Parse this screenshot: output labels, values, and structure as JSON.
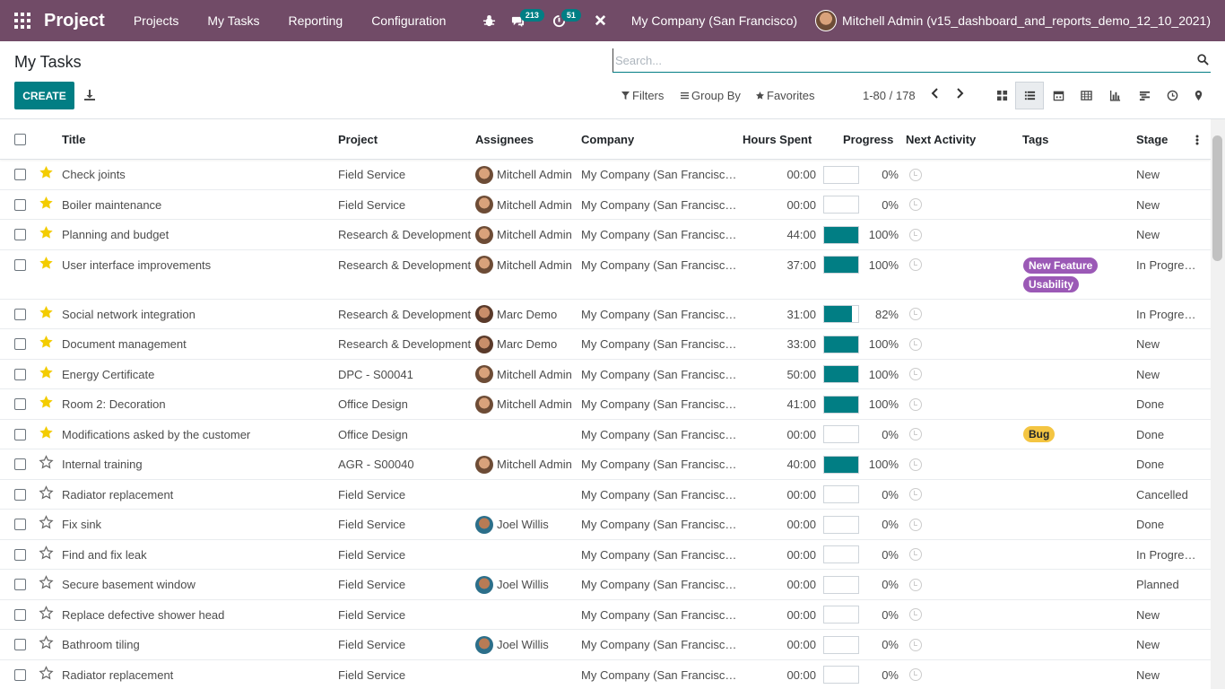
{
  "navbar": {
    "brand": "Project",
    "menus": [
      "Projects",
      "My Tasks",
      "Reporting",
      "Configuration"
    ],
    "messages_count": "213",
    "activities_count": "51",
    "company": "My Company (San Francisco)",
    "user": "Mitchell Admin (v15_dashboard_and_reports_demo_12_10_2021)"
  },
  "control_panel": {
    "title": "My Tasks",
    "create_label": "CREATE",
    "search_placeholder": "Search...",
    "filters_label": "Filters",
    "groupby_label": "Group By",
    "favorites_label": "Favorites",
    "pager": "1-80 / 178",
    "active_view": "list"
  },
  "table": {
    "headers": {
      "title": "Title",
      "project": "Project",
      "assignees": "Assignees",
      "company": "Company",
      "hours": "Hours Spent",
      "progress": "Progress",
      "activity": "Next Activity",
      "tags": "Tags",
      "stage": "Stage"
    },
    "tag_colors": {
      "New Feature": "#9b59b6",
      "Usability": "#9b59b6",
      "Bug": "#f4c542"
    },
    "rows": [
      {
        "starred": true,
        "title": "Check joints",
        "project": "Field Service",
        "assignee": "Mitchell Admin",
        "avatar": "mitchell",
        "company": "My Company (San Francisc…",
        "hours": "00:00",
        "progress": 0,
        "progress_label": "0%",
        "tags": [],
        "stage": "New"
      },
      {
        "starred": true,
        "title": "Boiler maintenance",
        "project": "Field Service",
        "assignee": "Mitchell Admin",
        "avatar": "mitchell",
        "company": "My Company (San Francisc…",
        "hours": "00:00",
        "progress": 0,
        "progress_label": "0%",
        "tags": [],
        "stage": "New"
      },
      {
        "starred": true,
        "title": "Planning and budget",
        "project": "Research & Development",
        "assignee": "Mitchell Admin",
        "avatar": "mitchell",
        "company": "My Company (San Francisc…",
        "hours": "44:00",
        "progress": 100,
        "progress_label": "100%",
        "tags": [],
        "stage": "New"
      },
      {
        "starred": true,
        "title": "User interface improvements",
        "project": "Research & Development",
        "assignee": "Mitchell Admin",
        "avatar": "mitchell",
        "company": "My Company (San Francisc…",
        "hours": "37:00",
        "progress": 100,
        "progress_label": "100%",
        "tags": [
          "New Feature",
          "Usability"
        ],
        "stage": "In Progre…"
      },
      {
        "starred": true,
        "title": "Social network integration",
        "project": "Research & Development",
        "assignee": "Marc Demo",
        "avatar": "marc",
        "company": "My Company (San Francisc…",
        "hours": "31:00",
        "progress": 82,
        "progress_label": "82%",
        "tags": [],
        "stage": "In Progre…"
      },
      {
        "starred": true,
        "title": "Document management",
        "project": "Research & Development",
        "assignee": "Marc Demo",
        "avatar": "marc",
        "company": "My Company (San Francisc…",
        "hours": "33:00",
        "progress": 100,
        "progress_label": "100%",
        "tags": [],
        "stage": "New"
      },
      {
        "starred": true,
        "title": "Energy Certificate",
        "project": "DPC - S00041",
        "assignee": "Mitchell Admin",
        "avatar": "mitchell",
        "company": "My Company (San Francisc…",
        "hours": "50:00",
        "progress": 100,
        "progress_label": "100%",
        "tags": [],
        "stage": "New"
      },
      {
        "starred": true,
        "title": "Room 2: Decoration",
        "project": "Office Design",
        "assignee": "Mitchell Admin",
        "avatar": "mitchell",
        "company": "My Company (San Francisc…",
        "hours": "41:00",
        "progress": 100,
        "progress_label": "100%",
        "tags": [],
        "stage": "Done"
      },
      {
        "starred": true,
        "title": "Modifications asked by the customer",
        "project": "Office Design",
        "assignee": "",
        "avatar": "",
        "company": "My Company (San Francisc…",
        "hours": "00:00",
        "progress": 0,
        "progress_label": "0%",
        "tags": [
          "Bug"
        ],
        "stage": "Done"
      },
      {
        "starred": false,
        "title": "Internal training",
        "project": "AGR - S00040",
        "assignee": "Mitchell Admin",
        "avatar": "mitchell",
        "company": "My Company (San Francisc…",
        "hours": "40:00",
        "progress": 100,
        "progress_label": "100%",
        "tags": [],
        "stage": "Done"
      },
      {
        "starred": false,
        "title": "Radiator replacement",
        "project": "Field Service",
        "assignee": "",
        "avatar": "",
        "company": "My Company (San Francisc…",
        "hours": "00:00",
        "progress": 0,
        "progress_label": "0%",
        "tags": [],
        "stage": "Cancelled"
      },
      {
        "starred": false,
        "title": "Fix sink",
        "project": "Field Service",
        "assignee": "Joel Willis",
        "avatar": "joel",
        "company": "My Company (San Francisc…",
        "hours": "00:00",
        "progress": 0,
        "progress_label": "0%",
        "tags": [],
        "stage": "Done"
      },
      {
        "starred": false,
        "title": "Find and fix leak",
        "project": "Field Service",
        "assignee": "",
        "avatar": "",
        "company": "My Company (San Francisc…",
        "hours": "00:00",
        "progress": 0,
        "progress_label": "0%",
        "tags": [],
        "stage": "In Progre…"
      },
      {
        "starred": false,
        "title": "Secure basement window",
        "project": "Field Service",
        "assignee": "Joel Willis",
        "avatar": "joel",
        "company": "My Company (San Francisc…",
        "hours": "00:00",
        "progress": 0,
        "progress_label": "0%",
        "tags": [],
        "stage": "Planned"
      },
      {
        "starred": false,
        "title": "Replace defective shower head",
        "project": "Field Service",
        "assignee": "",
        "avatar": "",
        "company": "My Company (San Francisc…",
        "hours": "00:00",
        "progress": 0,
        "progress_label": "0%",
        "tags": [],
        "stage": "New"
      },
      {
        "starred": false,
        "title": "Bathroom tiling",
        "project": "Field Service",
        "assignee": "Joel Willis",
        "avatar": "joel",
        "company": "My Company (San Francisc…",
        "hours": "00:00",
        "progress": 0,
        "progress_label": "0%",
        "tags": [],
        "stage": "New"
      },
      {
        "starred": false,
        "title": "Radiator replacement",
        "project": "Field Service",
        "assignee": "",
        "avatar": "",
        "company": "My Company (San Francisc…",
        "hours": "00:00",
        "progress": 0,
        "progress_label": "0%",
        "tags": [],
        "stage": "New"
      }
    ]
  }
}
